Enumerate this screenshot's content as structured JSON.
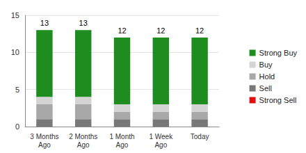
{
  "chart_data": {
    "type": "bar",
    "stacked": true,
    "categories": [
      "3 Months\nAgo",
      "2 Months\nAgo",
      "1 Month\nAgo",
      "1 Week\nAgo",
      "Today"
    ],
    "series": [
      {
        "name": "Strong Buy",
        "color": "#1e8c1e",
        "values": [
          9,
          9,
          9,
          9,
          9
        ]
      },
      {
        "name": "Buy",
        "color": "#d4d4d4",
        "values": [
          1,
          1,
          1,
          1,
          1
        ]
      },
      {
        "name": "Hold",
        "color": "#a8a8a8",
        "values": [
          2,
          2,
          1,
          1,
          1
        ]
      },
      {
        "name": "Sell",
        "color": "#787878",
        "values": [
          1,
          1,
          1,
          1,
          1
        ]
      },
      {
        "name": "Strong Sell",
        "color": "#dd1111",
        "values": [
          0,
          0,
          0,
          0,
          0
        ]
      }
    ],
    "totals": [
      13,
      13,
      12,
      12,
      12
    ],
    "ylim": [
      0,
      15
    ],
    "yticks": [
      0,
      5,
      10,
      15
    ],
    "grid": true,
    "legend": "right"
  }
}
